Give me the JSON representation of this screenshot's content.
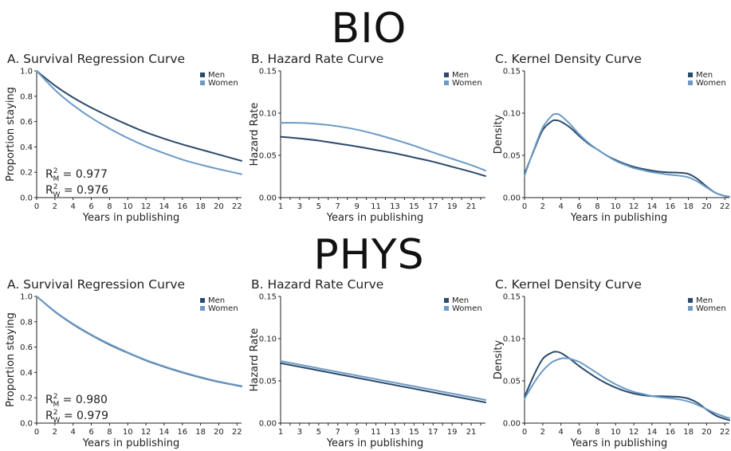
{
  "colors": {
    "men": "#2b4a6b",
    "women": "#6c9ac6"
  },
  "sections": [
    {
      "title": "BIO"
    },
    {
      "title": "PHYS"
    }
  ],
  "legend": {
    "men": "Men",
    "women": "Women"
  },
  "chart_data": [
    {
      "type": "line",
      "section": "BIO",
      "title": "A. Survival Regression Curve",
      "xlabel": "Years in publishing",
      "ylabel": "Proportion staying",
      "xlim": [
        0,
        22.5
      ],
      "ylim": [
        0,
        1.0
      ],
      "xticks": [
        0,
        2,
        4,
        6,
        8,
        10,
        12,
        14,
        16,
        18,
        20,
        22
      ],
      "yticks": [
        0,
        0.2,
        0.4,
        0.6,
        0.8,
        1.0
      ],
      "ytick_labels": [
        "0.0",
        "0.2",
        "0.4",
        "0.6",
        "0.8",
        "1.0"
      ],
      "legend": "top-right",
      "annotation": {
        "lines": [
          {
            "base": "R",
            "sup": "2",
            "sub": "M",
            "value": " = 0.977"
          },
          {
            "base": "R",
            "sup": "2",
            "sub": "W",
            "value": " = 0.976"
          }
        ]
      },
      "series": [
        {
          "name": "Men",
          "color": "men",
          "x": [
            0,
            2,
            4,
            6,
            8,
            10,
            12,
            14,
            16,
            18,
            20,
            22.5
          ],
          "values": [
            1.0,
            0.885,
            0.79,
            0.71,
            0.64,
            0.575,
            0.515,
            0.465,
            0.42,
            0.38,
            0.34,
            0.29
          ]
        },
        {
          "name": "Women",
          "color": "women",
          "x": [
            0,
            2,
            4,
            6,
            8,
            10,
            12,
            14,
            16,
            18,
            20,
            22.5
          ],
          "values": [
            1.0,
            0.85,
            0.73,
            0.63,
            0.545,
            0.47,
            0.405,
            0.35,
            0.3,
            0.26,
            0.225,
            0.185
          ]
        }
      ]
    },
    {
      "type": "line",
      "section": "BIO",
      "title": "B. Hazard Rate Curve",
      "xlabel": "Years in publishing",
      "ylabel": "Hazard Rate",
      "xlim": [
        1,
        22.5
      ],
      "ylim": [
        0,
        0.15
      ],
      "xticks": [
        1,
        3,
        5,
        7,
        9,
        11,
        13,
        15,
        17,
        19,
        21
      ],
      "minor_xticks": [
        2,
        4,
        6,
        8,
        10,
        12,
        14,
        16,
        18,
        20,
        22
      ],
      "yticks": [
        0,
        0.05,
        0.1,
        0.15
      ],
      "ytick_labels": [
        "0.00",
        "0.05",
        "0.10",
        "0.15"
      ],
      "legend": "top-right",
      "series": [
        {
          "name": "Men",
          "color": "men",
          "x": [
            1,
            3,
            5,
            7,
            9,
            11,
            13,
            15,
            17,
            19,
            21,
            22.5
          ],
          "values": [
            0.072,
            0.07,
            0.0675,
            0.064,
            0.0605,
            0.0565,
            0.0525,
            0.0475,
            0.0425,
            0.0365,
            0.0305,
            0.0255
          ]
        },
        {
          "name": "Women",
          "color": "women",
          "x": [
            1,
            3,
            5,
            7,
            9,
            11,
            13,
            15,
            17,
            19,
            21,
            22.5
          ],
          "values": [
            0.0885,
            0.0885,
            0.087,
            0.0845,
            0.0805,
            0.075,
            0.0685,
            0.0615,
            0.0535,
            0.046,
            0.0385,
            0.032
          ]
        }
      ]
    },
    {
      "type": "line",
      "section": "BIO",
      "title": "C. Kernel Density Curve",
      "xlabel": "Years in publishing",
      "ylabel": "Density",
      "xlim": [
        0,
        22.5
      ],
      "ylim": [
        0,
        0.15
      ],
      "xticks": [
        0,
        2,
        4,
        6,
        8,
        10,
        12,
        14,
        16,
        18,
        20,
        22
      ],
      "yticks": [
        0,
        0.05,
        0.1,
        0.15
      ],
      "ytick_labels": [
        "0.00",
        "0.05",
        "0.10",
        "0.15"
      ],
      "legend": "top-right",
      "series": [
        {
          "name": "Men",
          "color": "men",
          "x": [
            0,
            1,
            2,
            3,
            3.5,
            4,
            5,
            6,
            7,
            8,
            9,
            10,
            11,
            12,
            13,
            14,
            15,
            16,
            17,
            18,
            19,
            20,
            21,
            22,
            22.5
          ],
          "values": [
            0.028,
            0.055,
            0.08,
            0.0905,
            0.0915,
            0.09,
            0.083,
            0.073,
            0.064,
            0.057,
            0.05,
            0.0445,
            0.04,
            0.0365,
            0.034,
            0.032,
            0.0305,
            0.0298,
            0.0295,
            0.028,
            0.022,
            0.013,
            0.0055,
            0.002,
            0.001
          ]
        },
        {
          "name": "Women",
          "color": "women",
          "x": [
            0,
            1,
            2,
            3,
            3.5,
            4,
            5,
            6,
            7,
            8,
            9,
            10,
            11,
            12,
            13,
            14,
            15,
            16,
            17,
            18,
            19,
            20,
            21,
            22,
            22.5
          ],
          "values": [
            0.026,
            0.056,
            0.083,
            0.097,
            0.099,
            0.097,
            0.087,
            0.075,
            0.065,
            0.057,
            0.05,
            0.0435,
            0.039,
            0.035,
            0.0325,
            0.03,
            0.0285,
            0.027,
            0.026,
            0.024,
            0.019,
            0.012,
            0.0055,
            0.002,
            0.001
          ]
        }
      ]
    },
    {
      "type": "line",
      "section": "PHYS",
      "title": "A. Survival Regression Curve",
      "xlabel": "Years in publishing",
      "ylabel": "Proportion staying",
      "xlim": [
        0,
        22.5
      ],
      "ylim": [
        0,
        1.0
      ],
      "xticks": [
        0,
        2,
        4,
        6,
        8,
        10,
        12,
        14,
        16,
        18,
        20,
        22
      ],
      "yticks": [
        0,
        0.2,
        0.4,
        0.6,
        0.8,
        1.0
      ],
      "ytick_labels": [
        "0.0",
        "0.2",
        "0.4",
        "0.6",
        "0.8",
        "1.0"
      ],
      "legend": "top-right",
      "annotation": {
        "lines": [
          {
            "base": "R",
            "sup": "2",
            "sub": "M",
            "value": " = 0.980"
          },
          {
            "base": "R",
            "sup": "2",
            "sub": "W",
            "value": " = 0.979"
          }
        ]
      },
      "series": [
        {
          "name": "Men",
          "color": "men",
          "x": [
            0,
            2,
            4,
            6,
            8,
            10,
            12,
            14,
            16,
            18,
            20,
            22.5
          ],
          "values": [
            1.0,
            0.88,
            0.78,
            0.695,
            0.62,
            0.555,
            0.495,
            0.445,
            0.4,
            0.36,
            0.325,
            0.29
          ]
        },
        {
          "name": "Women",
          "color": "women",
          "x": [
            0,
            2,
            4,
            6,
            8,
            10,
            12,
            14,
            16,
            18,
            20,
            22.5
          ],
          "values": [
            1.0,
            0.882,
            0.783,
            0.698,
            0.624,
            0.558,
            0.498,
            0.448,
            0.403,
            0.363,
            0.328,
            0.293
          ]
        }
      ]
    },
    {
      "type": "line",
      "section": "PHYS",
      "title": "B. Hazard Rate Curve",
      "xlabel": "Years in publishing",
      "ylabel": "Hazard Rate",
      "xlim": [
        1,
        22.5
      ],
      "ylim": [
        0,
        0.15
      ],
      "xticks": [
        1,
        3,
        5,
        7,
        9,
        11,
        13,
        15,
        17,
        19,
        21
      ],
      "minor_xticks": [
        2,
        4,
        6,
        8,
        10,
        12,
        14,
        16,
        18,
        20,
        22
      ],
      "yticks": [
        0,
        0.05,
        0.1,
        0.15
      ],
      "ytick_labels": [
        "0.00",
        "0.05",
        "0.10",
        "0.15"
      ],
      "legend": "top-right",
      "series": [
        {
          "name": "Men",
          "color": "men",
          "x": [
            1,
            22.5
          ],
          "values": [
            0.071,
            0.0245
          ]
        },
        {
          "name": "Women",
          "color": "women",
          "x": [
            1,
            22.5
          ],
          "values": [
            0.0735,
            0.0275
          ]
        }
      ]
    },
    {
      "type": "line",
      "section": "PHYS",
      "title": "C. Kernel Density Curve",
      "xlabel": "Years in publishing",
      "ylabel": "Density",
      "xlim": [
        0,
        22.5
      ],
      "ylim": [
        0,
        0.15
      ],
      "xticks": [
        0,
        2,
        4,
        6,
        8,
        10,
        12,
        14,
        16,
        18,
        20,
        22
      ],
      "yticks": [
        0,
        0.05,
        0.1,
        0.15
      ],
      "ytick_labels": [
        "0.00",
        "0.05",
        "0.10",
        "0.15"
      ],
      "legend": "top-right",
      "series": [
        {
          "name": "Men",
          "color": "men",
          "x": [
            0,
            1,
            2,
            3,
            3.5,
            4,
            5,
            6,
            7,
            8,
            9,
            10,
            11,
            12,
            13,
            14,
            15,
            16,
            17,
            18,
            19,
            20,
            21,
            22,
            22.5
          ],
          "values": [
            0.031,
            0.056,
            0.076,
            0.0835,
            0.0845,
            0.083,
            0.076,
            0.0675,
            0.06,
            0.053,
            0.047,
            0.042,
            0.038,
            0.035,
            0.033,
            0.032,
            0.0318,
            0.0315,
            0.031,
            0.029,
            0.024,
            0.016,
            0.009,
            0.005,
            0.0035
          ]
        },
        {
          "name": "Women",
          "color": "women",
          "x": [
            0,
            1,
            2,
            3,
            4,
            4.5,
            5,
            6,
            7,
            8,
            9,
            10,
            11,
            12,
            13,
            14,
            15,
            16,
            17,
            18,
            19,
            20,
            21,
            22,
            22.5
          ],
          "values": [
            0.029,
            0.047,
            0.062,
            0.072,
            0.0765,
            0.0768,
            0.0762,
            0.0725,
            0.066,
            0.059,
            0.052,
            0.046,
            0.041,
            0.037,
            0.0345,
            0.032,
            0.0305,
            0.0295,
            0.028,
            0.0255,
            0.0215,
            0.0165,
            0.0115,
            0.0075,
            0.006
          ]
        }
      ]
    }
  ]
}
